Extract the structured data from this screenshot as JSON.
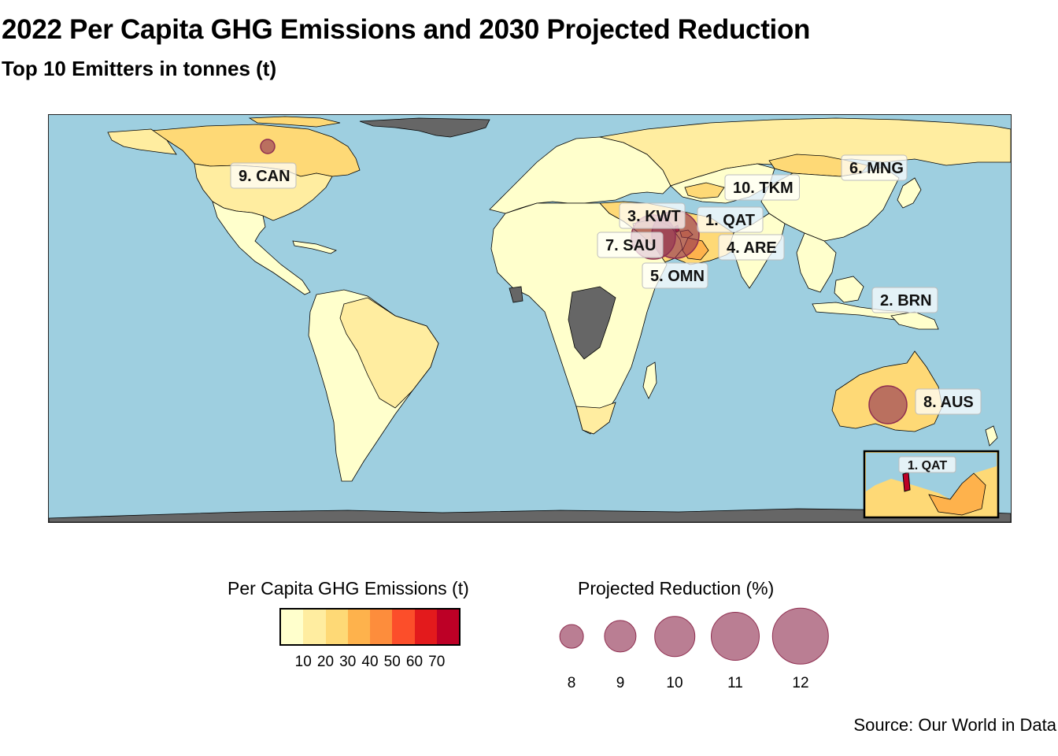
{
  "title": "2022 Per Capita GHG Emissions and 2030 Projected Reduction",
  "subtitle": "Top 10 Emitters in tonnes (t)",
  "source": "Source: Our World in Data",
  "colors": {
    "ocean": "#9ecfe0",
    "no_data": "#666666",
    "bubble": "#8f2e50",
    "border": "#000000"
  },
  "emissions_legend": {
    "title": "Per Capita GHG Emissions (t)",
    "ticks": [
      "10",
      "20",
      "30",
      "40",
      "50",
      "60",
      "70"
    ],
    "palette": [
      "#ffffcc",
      "#ffeda0",
      "#fed976",
      "#feb24c",
      "#fd8d3c",
      "#fc4e2a",
      "#e31a1c",
      "#bd0026"
    ]
  },
  "reduction_legend": {
    "title": "Projected Reduction (%)",
    "items": [
      {
        "label": "8",
        "value": 8
      },
      {
        "label": "9",
        "value": 9
      },
      {
        "label": "10",
        "value": 10
      },
      {
        "label": "11",
        "value": 11
      },
      {
        "label": "12",
        "value": 12
      }
    ]
  },
  "map": {
    "projection": "equirectangular",
    "inset_label": "1. QAT",
    "emitters": [
      {
        "label": "1. QAT",
        "code": "QAT",
        "rank": 1,
        "lon": 51.2,
        "lat": 25.3
      },
      {
        "label": "2. BRN",
        "code": "BRN",
        "rank": 2,
        "lon": 114.7,
        "lat": 4.5
      },
      {
        "label": "3. KWT",
        "code": "KWT",
        "rank": 3,
        "lon": 47.5,
        "lat": 29.3
      },
      {
        "label": "4. ARE",
        "code": "ARE",
        "rank": 4,
        "lon": 54.0,
        "lat": 24.0
      },
      {
        "label": "5. OMN",
        "code": "OMN",
        "rank": 5,
        "lon": 57.0,
        "lat": 21.0
      },
      {
        "label": "6. MNG",
        "code": "MNG",
        "rank": 6,
        "lon": 103.8,
        "lat": 46.9
      },
      {
        "label": "7. SAU",
        "code": "SAU",
        "rank": 7,
        "lon": 45.0,
        "lat": 24.0
      },
      {
        "label": "8. AUS",
        "code": "AUS",
        "rank": 8,
        "lon": 134.5,
        "lat": -25.7
      },
      {
        "label": "9. CAN",
        "code": "CAN",
        "rank": 9,
        "lon": -106.3,
        "lat": 56.1
      },
      {
        "label": "10. TKM",
        "code": "TKM",
        "rank": 10,
        "lon": 59.6,
        "lat": 38.9
      }
    ]
  }
}
